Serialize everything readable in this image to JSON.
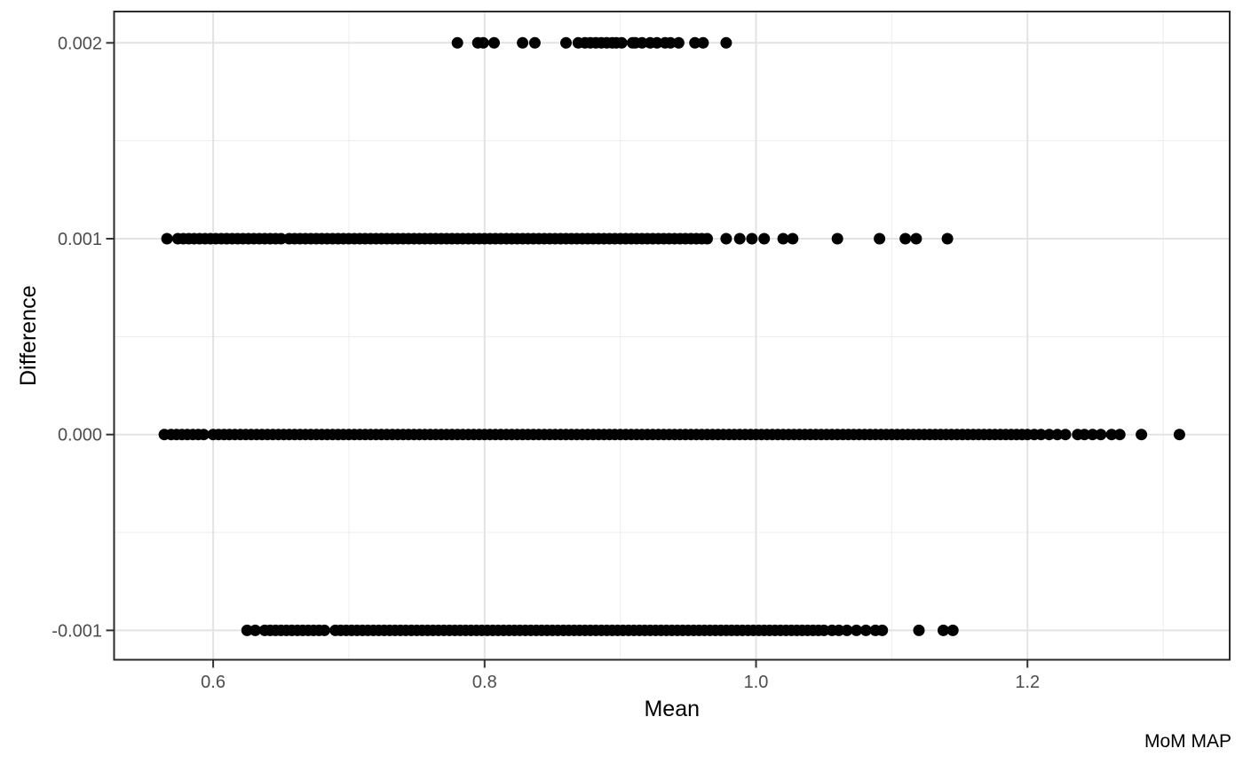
{
  "chart_data": {
    "type": "scatter",
    "title": "",
    "xlabel": "Mean",
    "ylabel": "Difference",
    "caption": "MoM MAP",
    "legend": "none",
    "grid": "on",
    "xlim": [
      0.527,
      1.349
    ],
    "ylim": [
      -0.00115,
      0.00216
    ],
    "x_ticks": [
      0.6,
      0.8,
      1.0,
      1.2
    ],
    "x_tick_labels": [
      "0.6",
      "0.8",
      "1.0",
      "1.2"
    ],
    "x_minor_ticks": [
      0.7,
      0.9,
      1.1,
      1.3
    ],
    "y_ticks": [
      -0.001,
      0.0,
      0.001,
      0.002
    ],
    "y_tick_labels": [
      "-0.001",
      "0.000",
      "0.001",
      "0.002"
    ],
    "y_minor_ticks": [
      -0.0005,
      0.0005,
      0.0015
    ],
    "point_color": "#000000",
    "point_radius_px": 6.5,
    "dense_step": 0.004,
    "bands": [
      {
        "y": 0.002,
        "dense_ranges": [],
        "points": [
          0.78,
          0.795,
          0.799,
          0.807,
          0.828,
          0.837,
          0.86,
          0.869,
          0.874,
          0.878,
          0.882,
          0.886,
          0.89,
          0.894,
          0.897,
          0.901,
          0.909,
          0.911,
          0.916,
          0.922,
          0.927,
          0.933,
          0.937,
          0.943,
          0.955,
          0.961,
          0.978
        ]
      },
      {
        "y": 0.001,
        "dense_ranges": [
          [
            0.574,
            0.652
          ],
          [
            0.656,
            0.967
          ]
        ],
        "points": [
          0.566,
          0.978,
          0.988,
          0.997,
          1.006,
          1.02,
          1.027,
          1.06,
          1.091,
          1.11,
          1.118,
          1.141
        ]
      },
      {
        "y": 0.0,
        "dense_ranges": [
          [
            0.569,
            0.593
          ],
          [
            0.6,
            1.2
          ]
        ],
        "points": [
          0.564,
          1.205,
          1.21,
          1.216,
          1.222,
          1.228,
          1.237,
          1.242,
          1.248,
          1.254,
          1.262,
          1.268,
          1.284,
          1.312
        ]
      },
      {
        "y": -0.001,
        "dense_ranges": [
          [
            0.638,
            0.684
          ],
          [
            0.69,
            1.052
          ]
        ],
        "points": [
          0.625,
          0.631,
          1.056,
          1.061,
          1.067,
          1.074,
          1.081,
          1.088,
          1.093,
          1.12,
          1.138,
          1.145
        ]
      }
    ]
  },
  "colors": {
    "background": "#FFFFFF",
    "panel_background": "#FFFFFF",
    "panel_border": "#2B2B2B",
    "grid_major": "#E3E3E3",
    "grid_minor": "#EDEDED",
    "tick_mark": "#333333",
    "tick_label": "#4D4D4D",
    "axis_title": "#000000",
    "caption_color": "#000000"
  }
}
